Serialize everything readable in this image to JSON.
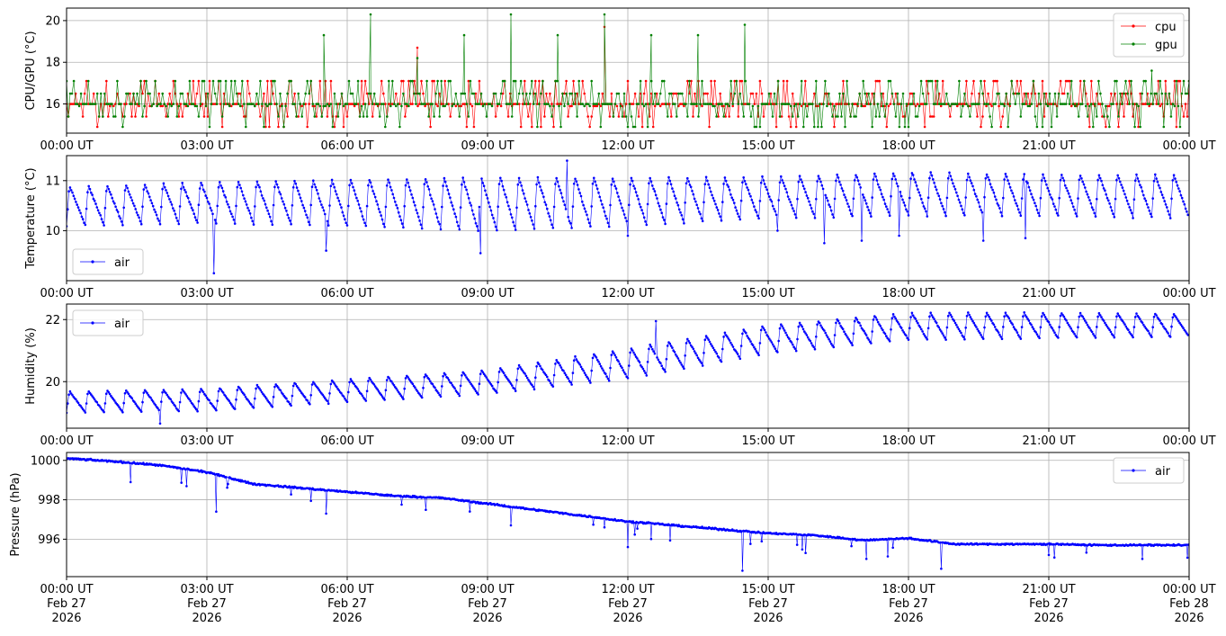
{
  "chart_data": [
    {
      "type": "line",
      "ylabel": "CPU/GPU (°C)",
      "xlim": [
        "00:00",
        "24:00"
      ],
      "ylim": [
        14.6,
        20.6
      ],
      "yticks": [
        16,
        18,
        20
      ],
      "xtick_labels": [
        "00:00 UT",
        "03:00 UT",
        "06:00 UT",
        "09:00 UT",
        "12:00 UT",
        "15:00 UT",
        "18:00 UT",
        "21:00 UT",
        "00:00 UT"
      ],
      "grid": true,
      "legend": "upper-right",
      "series": [
        {
          "name": "cpu",
          "color": "#ff0000",
          "baseline": 16.0,
          "levels": [
            15.4,
            15.9,
            16.5,
            17.1
          ],
          "spikes": [
            {
              "x": 7.5,
              "y": 18.7
            },
            {
              "x": 11.5,
              "y": 19.7
            }
          ]
        },
        {
          "name": "gpu",
          "color": "#008000",
          "baseline": 16.0,
          "levels": [
            15.4,
            15.9,
            16.5,
            17.1
          ],
          "spikes": [
            {
              "x": 5.5,
              "y": 19.3
            },
            {
              "x": 6.5,
              "y": 20.3
            },
            {
              "x": 7.5,
              "y": 18.2
            },
            {
              "x": 8.5,
              "y": 19.3
            },
            {
              "x": 9.5,
              "y": 20.3
            },
            {
              "x": 10.5,
              "y": 19.3
            },
            {
              "x": 11.5,
              "y": 20.3
            },
            {
              "x": 12.5,
              "y": 19.3
            },
            {
              "x": 13.5,
              "y": 19.3
            },
            {
              "x": 14.5,
              "y": 19.8
            },
            {
              "x": 23.2,
              "y": 17.6
            }
          ]
        }
      ]
    },
    {
      "type": "line",
      "ylabel": "Temperature (°C)",
      "xlim": [
        "00:00",
        "24:00"
      ],
      "ylim": [
        9.0,
        11.5
      ],
      "yticks": [
        10,
        11
      ],
      "xtick_labels": [
        "00:00 UT",
        "03:00 UT",
        "06:00 UT",
        "09:00 UT",
        "12:00 UT",
        "15:00 UT",
        "18:00 UT",
        "21:00 UT",
        "00:00 UT"
      ],
      "grid": true,
      "legend": "lower-left",
      "series": [
        {
          "name": "air",
          "color": "#0000ff",
          "cycle_hours": 0.4,
          "cycle_peaks": [
            10.9,
            11.0,
            11.05,
            11.1,
            11.1,
            11.1,
            11.2,
            11.15,
            11.15
          ],
          "cycle_troughs": [
            10.1,
            10.15,
            10.1,
            10.0,
            10.1,
            10.25,
            10.3,
            10.3,
            10.25
          ],
          "dips": [
            {
              "x": 3.15,
              "y": 9.15
            },
            {
              "x": 5.55,
              "y": 9.6
            },
            {
              "x": 8.85,
              "y": 9.55
            },
            {
              "x": 12.0,
              "y": 9.9
            },
            {
              "x": 15.2,
              "y": 10.0
            },
            {
              "x": 16.2,
              "y": 9.75
            },
            {
              "x": 17.0,
              "y": 9.8
            },
            {
              "x": 17.8,
              "y": 9.9
            },
            {
              "x": 19.6,
              "y": 9.8
            },
            {
              "x": 20.5,
              "y": 9.85
            }
          ],
          "max_point": {
            "x": 10.7,
            "y": 11.4
          }
        }
      ]
    },
    {
      "type": "line",
      "ylabel": "Humidity (%)",
      "xlim": [
        "00:00",
        "24:00"
      ],
      "ylim": [
        18.5,
        22.5
      ],
      "yticks": [
        20,
        22
      ],
      "xtick_labels": [
        "00:00 UT",
        "03:00 UT",
        "06:00 UT",
        "09:00 UT",
        "12:00 UT",
        "15:00 UT",
        "18:00 UT",
        "21:00 UT",
        "00:00 UT"
      ],
      "grid": true,
      "legend": "upper-left",
      "series": [
        {
          "name": "air",
          "color": "#0000ff",
          "cycle_hours": 0.4,
          "trend_hours": [
            0,
            3,
            6,
            9,
            12,
            15,
            18,
            21,
            24
          ],
          "trend_troughs": [
            19.0,
            19.05,
            19.35,
            19.6,
            20.1,
            20.9,
            21.35,
            21.4,
            21.45
          ],
          "trend_peaks": [
            19.7,
            19.8,
            20.1,
            20.4,
            21.1,
            21.85,
            22.25,
            22.25,
            22.2
          ],
          "dips": [
            {
              "x": 2.0,
              "y": 18.65
            }
          ],
          "spikes": [
            {
              "x": 12.6,
              "y": 21.95
            }
          ]
        }
      ]
    },
    {
      "type": "line",
      "ylabel": "Pressure (hPa)",
      "xlim": [
        "00:00",
        "24:00"
      ],
      "ylim": [
        994.1,
        1000.4
      ],
      "yticks": [
        996,
        998,
        1000
      ],
      "xtick_labels": [
        "00:00 UT\nFeb 27\n2026",
        "03:00 UT\nFeb 27\n2026",
        "06:00 UT\nFeb 27\n2026",
        "09:00 UT\nFeb 27\n2026",
        "12:00 UT\nFeb 27\n2026",
        "15:00 UT\nFeb 27\n2026",
        "18:00 UT\nFeb 27\n2026",
        "21:00 UT\nFeb 27\n2026",
        "00:00 UT\nFeb 28\n2026"
      ],
      "grid": true,
      "legend": "upper-right",
      "series": [
        {
          "name": "air",
          "color": "#0000ff",
          "trend_hours": [
            0,
            1,
            2,
            3,
            4,
            5,
            6,
            7,
            8,
            9,
            10,
            11,
            12,
            13,
            14,
            15,
            16,
            17,
            18,
            19,
            20,
            21,
            22,
            23,
            24
          ],
          "trend_values": [
            1000.1,
            999.95,
            999.75,
            999.4,
            998.8,
            998.6,
            998.4,
            998.2,
            998.1,
            997.8,
            997.5,
            997.2,
            996.9,
            996.7,
            996.5,
            996.3,
            996.2,
            995.95,
            996.05,
            995.75,
            995.75,
            995.75,
            995.7,
            995.7,
            995.7
          ],
          "dips": [
            {
              "x": 1.37,
              "y": 998.9
            },
            {
              "x": 3.2,
              "y": 997.4
            },
            {
              "x": 5.55,
              "y": 997.3
            },
            {
              "x": 9.5,
              "y": 996.7
            },
            {
              "x": 11.5,
              "y": 996.6
            },
            {
              "x": 12.0,
              "y": 995.6
            },
            {
              "x": 14.45,
              "y": 994.4
            },
            {
              "x": 15.8,
              "y": 995.3
            },
            {
              "x": 17.1,
              "y": 995.0
            },
            {
              "x": 18.7,
              "y": 994.5
            },
            {
              "x": 21.0,
              "y": 995.2
            },
            {
              "x": 23.0,
              "y": 995.0
            }
          ]
        }
      ]
    }
  ]
}
